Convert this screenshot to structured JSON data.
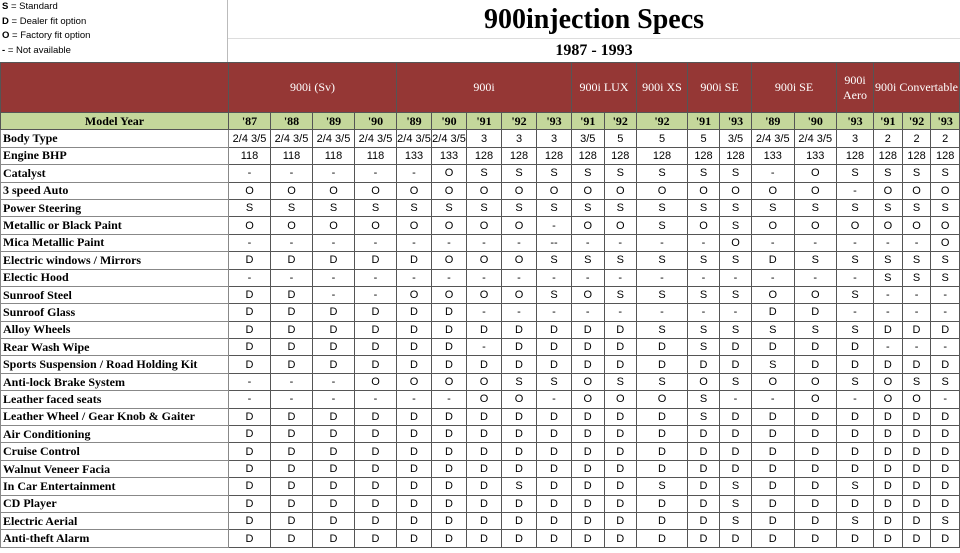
{
  "legend": [
    {
      "key": "S",
      "text": "= Standard"
    },
    {
      "key": "D",
      "text": "= Dealer fit option"
    },
    {
      "key": "O",
      "text": "= Factory fit option"
    },
    {
      "key": "-",
      "text": "= Not available"
    }
  ],
  "title": "900injection Specs",
  "subtitle": "1987 - 1993",
  "year_header": "Model Year",
  "groups": [
    {
      "name": "900i (Sv)",
      "years": [
        "'87",
        "'88",
        "'89",
        "'90"
      ]
    },
    {
      "name": "900i",
      "years": [
        "'89",
        "'90",
        "'91",
        "'92",
        "'93"
      ]
    },
    {
      "name": "900i LUX",
      "years": [
        "'91",
        "'92"
      ]
    },
    {
      "name": "900i XS",
      "years": [
        "'92"
      ]
    },
    {
      "name": "900i SE",
      "years": [
        "'91",
        "'93"
      ]
    },
    {
      "name": "900i SE",
      "years": [
        "'89",
        "'90"
      ]
    },
    {
      "name": "900i Aero",
      "years": [
        "'93"
      ]
    },
    {
      "name": "900i Convertable",
      "years": [
        "'91",
        "'92",
        "'93"
      ]
    }
  ],
  "rows": [
    {
      "label": "Body Type",
      "values": [
        "2/4 3/5",
        "2/4 3/5",
        "2/4 3/5",
        "2/4 3/5",
        "2/4 3/5",
        "2/4 3/5",
        "3",
        "3",
        "3",
        "3/5",
        "5",
        "5",
        "5",
        "3/5",
        "2/4 3/5",
        "2/4 3/5",
        "3",
        "2",
        "2",
        "2"
      ]
    },
    {
      "label": "Engine BHP",
      "values": [
        "118",
        "118",
        "118",
        "118",
        "133",
        "133",
        "128",
        "128",
        "128",
        "128",
        "128",
        "128",
        "128",
        "128",
        "133",
        "133",
        "128",
        "128",
        "128",
        "128"
      ]
    },
    {
      "label": "Catalyst",
      "values": [
        "-",
        "-",
        "-",
        "-",
        "-",
        "O",
        "S",
        "S",
        "S",
        "S",
        "S",
        "S",
        "S",
        "S",
        "-",
        "O",
        "S",
        "S",
        "S",
        "S"
      ]
    },
    {
      "label": "3 speed Auto",
      "values": [
        "O",
        "O",
        "O",
        "O",
        "O",
        "O",
        "O",
        "O",
        "O",
        "O",
        "O",
        "O",
        "O",
        "O",
        "O",
        "O",
        "-",
        "O",
        "O",
        "O"
      ]
    },
    {
      "label": "Power Steering",
      "values": [
        "S",
        "S",
        "S",
        "S",
        "S",
        "S",
        "S",
        "S",
        "S",
        "S",
        "S",
        "S",
        "S",
        "S",
        "S",
        "S",
        "S",
        "S",
        "S",
        "S"
      ]
    },
    {
      "label": "Metallic or Black Paint",
      "values": [
        "O",
        "O",
        "O",
        "O",
        "O",
        "O",
        "O",
        "O",
        "-",
        "O",
        "O",
        "S",
        "O",
        "S",
        "O",
        "O",
        "O",
        "O",
        "O",
        "O"
      ]
    },
    {
      "label": "Mica Metallic Paint",
      "values": [
        "-",
        "-",
        "-",
        "-",
        "-",
        "-",
        "-",
        "-",
        "--",
        "-",
        "-",
        "-",
        "-",
        "O",
        "-",
        "-",
        "-",
        "-",
        "-",
        "O"
      ]
    },
    {
      "label": "Electric windows / Mirrors",
      "values": [
        "D",
        "D",
        "D",
        "D",
        "D",
        "O",
        "O",
        "O",
        "S",
        "S",
        "S",
        "S",
        "S",
        "S",
        "D",
        "S",
        "S",
        "S",
        "S",
        "S"
      ]
    },
    {
      "label": "Electic Hood",
      "values": [
        "-",
        "-",
        "-",
        "-",
        "-",
        "-",
        "-",
        "-",
        "-",
        "-",
        "-",
        "-",
        "-",
        "-",
        "-",
        "-",
        "-",
        "S",
        "S",
        "S"
      ]
    },
    {
      "label": "Sunroof Steel",
      "values": [
        "D",
        "D",
        "-",
        "-",
        "O",
        "O",
        "O",
        "O",
        "S",
        "O",
        "S",
        "S",
        "S",
        "S",
        "O",
        "O",
        "S",
        "-",
        "-",
        "-"
      ]
    },
    {
      "label": "Sunroof Glass",
      "values": [
        "D",
        "D",
        "D",
        "D",
        "D",
        "D",
        "-",
        "-",
        "-",
        "-",
        "-",
        "-",
        "-",
        "-",
        "D",
        "D",
        "-",
        "-",
        "-",
        "-"
      ]
    },
    {
      "label": "Alloy Wheels",
      "values": [
        "D",
        "D",
        "D",
        "D",
        "D",
        "D",
        "D",
        "D",
        "D",
        "D",
        "D",
        "S",
        "S",
        "S",
        "S",
        "S",
        "S",
        "D",
        "D",
        "D"
      ]
    },
    {
      "label": "Rear Wash Wipe",
      "values": [
        "D",
        "D",
        "D",
        "D",
        "D",
        "D",
        "-",
        "D",
        "D",
        "D",
        "D",
        "D",
        "S",
        "D",
        "D",
        "D",
        "D",
        "-",
        "-",
        "-"
      ]
    },
    {
      "label": "Sports Suspension / Road Holding Kit",
      "values": [
        "D",
        "D",
        "D",
        "D",
        "D",
        "D",
        "D",
        "D",
        "D",
        "D",
        "D",
        "D",
        "D",
        "D",
        "S",
        "D",
        "D",
        "D",
        "D",
        "D"
      ]
    },
    {
      "label": "Anti-lock Brake System",
      "values": [
        "-",
        "-",
        "-",
        "O",
        "O",
        "O",
        "O",
        "S",
        "S",
        "O",
        "S",
        "S",
        "O",
        "S",
        "O",
        "O",
        "S",
        "O",
        "S",
        "S"
      ]
    },
    {
      "label": "Leather faced seats",
      "values": [
        "-",
        "-",
        "-",
        "-",
        "-",
        "-",
        "O",
        "O",
        "-",
        "O",
        "O",
        "O",
        "S",
        "-",
        "-",
        "O",
        "-",
        "O",
        "O",
        "-"
      ]
    },
    {
      "label": "Leather Wheel / Gear Knob & Gaiter",
      "values": [
        "D",
        "D",
        "D",
        "D",
        "D",
        "D",
        "D",
        "D",
        "D",
        "D",
        "D",
        "D",
        "S",
        "D",
        "D",
        "D",
        "D",
        "D",
        "D",
        "D"
      ]
    },
    {
      "label": "Air Conditioning",
      "values": [
        "D",
        "D",
        "D",
        "D",
        "D",
        "D",
        "D",
        "D",
        "D",
        "D",
        "D",
        "D",
        "D",
        "D",
        "D",
        "D",
        "D",
        "D",
        "D",
        "D"
      ]
    },
    {
      "label": "Cruise Control",
      "values": [
        "D",
        "D",
        "D",
        "D",
        "D",
        "D",
        "D",
        "D",
        "D",
        "D",
        "D",
        "D",
        "D",
        "D",
        "D",
        "D",
        "D",
        "D",
        "D",
        "D"
      ]
    },
    {
      "label": "Walnut Veneer Facia",
      "values": [
        "D",
        "D",
        "D",
        "D",
        "D",
        "D",
        "D",
        "D",
        "D",
        "D",
        "D",
        "D",
        "D",
        "D",
        "D",
        "D",
        "D",
        "D",
        "D",
        "D"
      ]
    },
    {
      "label": "In Car Entertainment",
      "values": [
        "D",
        "D",
        "D",
        "D",
        "D",
        "D",
        "D",
        "S",
        "D",
        "D",
        "D",
        "S",
        "D",
        "S",
        "D",
        "D",
        "S",
        "D",
        "D",
        "D"
      ]
    },
    {
      "label": "CD Player",
      "values": [
        "D",
        "D",
        "D",
        "D",
        "D",
        "D",
        "D",
        "D",
        "D",
        "D",
        "D",
        "D",
        "D",
        "S",
        "D",
        "D",
        "D",
        "D",
        "D",
        "D"
      ]
    },
    {
      "label": "Electric Aerial",
      "values": [
        "D",
        "D",
        "D",
        "D",
        "D",
        "D",
        "D",
        "D",
        "D",
        "D",
        "D",
        "D",
        "D",
        "S",
        "D",
        "D",
        "S",
        "D",
        "D",
        "S"
      ]
    },
    {
      "label": "Anti-theft Alarm",
      "values": [
        "D",
        "D",
        "D",
        "D",
        "D",
        "D",
        "D",
        "D",
        "D",
        "D",
        "D",
        "D",
        "D",
        "D",
        "D",
        "D",
        "D",
        "D",
        "D",
        "D"
      ]
    }
  ]
}
